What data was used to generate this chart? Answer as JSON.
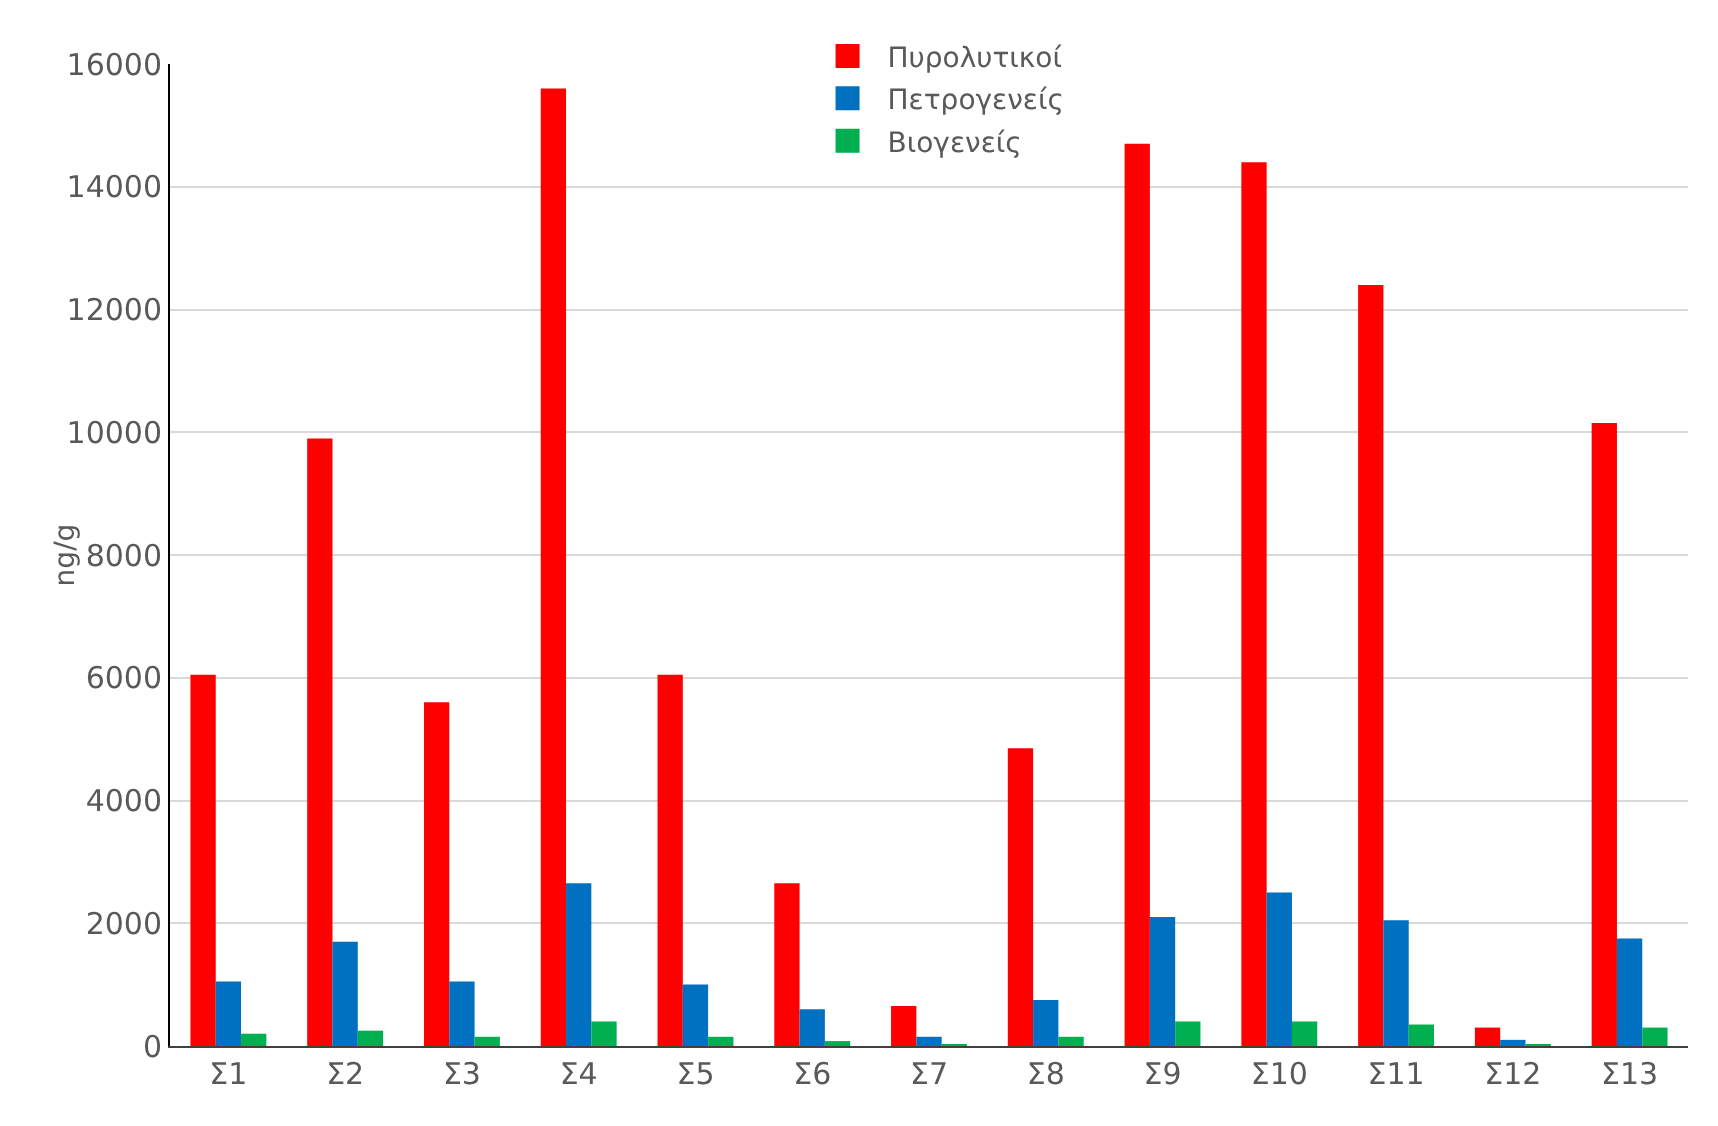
{
  "chart_data": {
    "type": "bar",
    "ylabel": "ng/g",
    "categories": [
      "Σ1",
      "Σ2",
      "Σ3",
      "Σ4",
      "Σ5",
      "Σ6",
      "Σ7",
      "Σ8",
      "Σ9",
      "Σ10",
      "Σ11",
      "Σ12",
      "Σ13"
    ],
    "series": [
      {
        "name": "Πυρολυτικοί",
        "color": "#ff0000",
        "values": [
          6050,
          9900,
          5600,
          15600,
          6050,
          2650,
          650,
          4850,
          14700,
          14400,
          12400,
          300,
          10150
        ]
      },
      {
        "name": "Πετρογενείς",
        "color": "#0070c0",
        "values": [
          1050,
          1700,
          1050,
          2650,
          1000,
          600,
          150,
          750,
          2100,
          2500,
          2050,
          100,
          1750
        ]
      },
      {
        "name": "Βιογενείς",
        "color": "#00b050",
        "values": [
          200,
          250,
          150,
          400,
          150,
          80,
          30,
          150,
          400,
          400,
          350,
          30,
          300
        ]
      }
    ],
    "ylim": [
      0,
      16000
    ],
    "yticks": [
      0,
      2000,
      4000,
      6000,
      8000,
      10000,
      12000,
      14000,
      16000
    ],
    "grid": "y",
    "legend": "top"
  }
}
